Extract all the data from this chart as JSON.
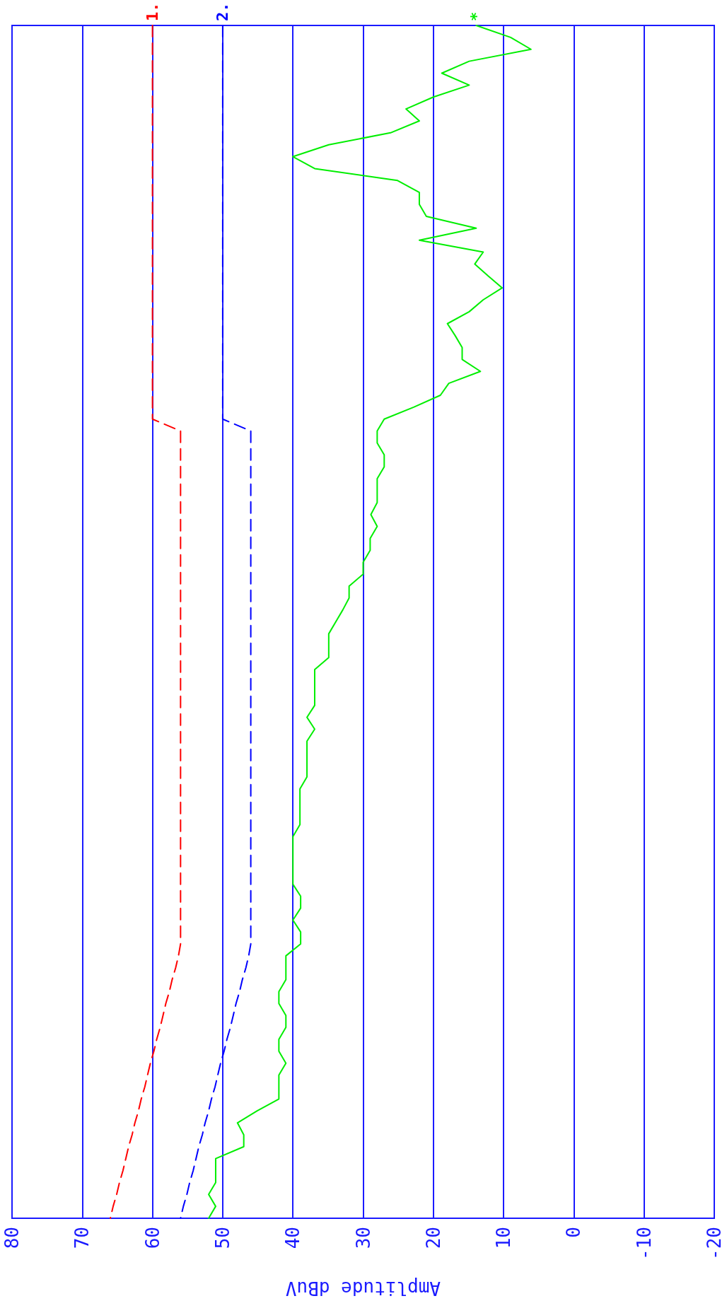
{
  "chart_data": {
    "type": "line",
    "orientation": "horizontal",
    "xlabel": "Amplitude dBuV",
    "categories": [
      null,
      null,
      null,
      null,
      null,
      null,
      null,
      null,
      null,
      null,
      null,
      null,
      null,
      null,
      null,
      null,
      null,
      null,
      null,
      null,
      null,
      null,
      null,
      null,
      null,
      null,
      null,
      null,
      null,
      null,
      null,
      null,
      null,
      null,
      null,
      null,
      null,
      null,
      null,
      null,
      null,
      null,
      null,
      null,
      null,
      null,
      null,
      null,
      null,
      null,
      null,
      null,
      null,
      null,
      null,
      null,
      null,
      null,
      null,
      null,
      null,
      null,
      null,
      null,
      null,
      null,
      null,
      null,
      null,
      null,
      null,
      null,
      null,
      null,
      null,
      null,
      null,
      null,
      null,
      null,
      null,
      null,
      null,
      null,
      null,
      null,
      null,
      null,
      null,
      null,
      null,
      null,
      null,
      null,
      null,
      null,
      null,
      null,
      null,
      null,
      null
    ],
    "series": [
      {
        "name": "1.",
        "color": "#ff0000",
        "line_style": "dashed",
        "values": [
          60,
          60,
          60,
          60,
          60,
          60,
          60,
          60,
          60,
          60,
          60,
          60,
          60,
          60,
          60,
          60,
          60,
          60,
          60,
          60,
          60,
          60,
          60,
          60,
          60,
          60,
          60,
          60,
          60,
          60,
          60,
          60,
          60,
          60,
          56,
          56,
          56,
          56,
          56,
          56,
          56,
          56,
          56,
          56,
          56,
          56,
          56,
          56,
          56,
          56,
          56,
          56,
          56,
          56,
          56,
          56,
          56,
          56,
          56,
          56,
          56,
          56,
          56,
          56,
          56,
          56,
          56,
          56,
          56,
          56,
          56,
          56,
          56,
          56,
          56,
          56,
          56,
          56,
          56.3,
          56.7,
          57.2,
          57.6,
          58.1,
          58.5,
          58.9,
          59.4,
          59.8,
          60.3,
          60.7,
          61.1,
          61.6,
          62,
          62.5,
          62.9,
          63.4,
          63.8,
          64.2,
          64.7,
          65.1,
          65.6,
          66
        ]
      },
      {
        "name": "2.",
        "color": "#0000ff",
        "line_style": "dashed",
        "values": [
          50,
          50,
          50,
          50,
          50,
          50,
          50,
          50,
          50,
          50,
          50,
          50,
          50,
          50,
          50,
          50,
          50,
          50,
          50,
          50,
          50,
          50,
          50,
          50,
          50,
          50,
          50,
          50,
          50,
          50,
          50,
          50,
          50,
          50,
          46,
          46,
          46,
          46,
          46,
          46,
          46,
          46,
          46,
          46,
          46,
          46,
          46,
          46,
          46,
          46,
          46,
          46,
          46,
          46,
          46,
          46,
          46,
          46,
          46,
          46,
          46,
          46,
          46,
          46,
          46,
          46,
          46,
          46,
          46,
          46,
          46,
          46,
          46,
          46,
          46,
          46,
          46,
          46,
          46.3,
          46.7,
          47.2,
          47.6,
          48.1,
          48.5,
          48.9,
          49.4,
          49.8,
          50.3,
          50.7,
          51.1,
          51.6,
          52,
          52.5,
          52.9,
          53.4,
          53.8,
          54.2,
          54.7,
          55.1,
          55.6,
          56
        ]
      },
      {
        "name": "*",
        "color": "#00ee00",
        "line_style": "solid",
        "values": [
          13.9,
          9,
          6.1,
          14.9,
          18.8,
          14.9,
          20,
          23.9,
          22,
          26.1,
          34.9,
          40,
          36.9,
          25.1,
          22,
          22,
          21,
          13.9,
          22,
          12.9,
          14.1,
          12.2,
          10.2,
          12.9,
          14.9,
          18,
          16.9,
          15.9,
          15.9,
          13.3,
          17.8,
          19,
          22.8,
          27,
          28,
          28,
          27,
          27,
          28,
          28,
          28,
          28.9,
          28,
          29,
          29,
          30,
          30,
          32,
          32,
          32.9,
          33.9,
          34.9,
          34.9,
          34.9,
          36.9,
          36.9,
          36.9,
          36.9,
          38,
          36.9,
          38,
          38,
          38,
          38,
          39,
          39,
          39,
          39,
          40,
          40,
          40,
          40,
          40,
          38.9,
          38.9,
          40,
          38.9,
          38.9,
          41,
          41,
          41,
          42,
          42,
          41,
          41,
          42,
          42,
          41,
          42,
          42,
          42,
          45.1,
          47.9,
          47,
          47,
          51,
          51,
          51,
          52,
          51,
          52
        ]
      }
    ],
    "xlim": [
      80,
      -20
    ],
    "xticks": [
      80,
      70,
      60,
      50,
      40,
      30,
      20,
      10,
      0,
      -10,
      -20
    ],
    "grid": "x",
    "tick_labels": "x",
    "marker": "none"
  }
}
